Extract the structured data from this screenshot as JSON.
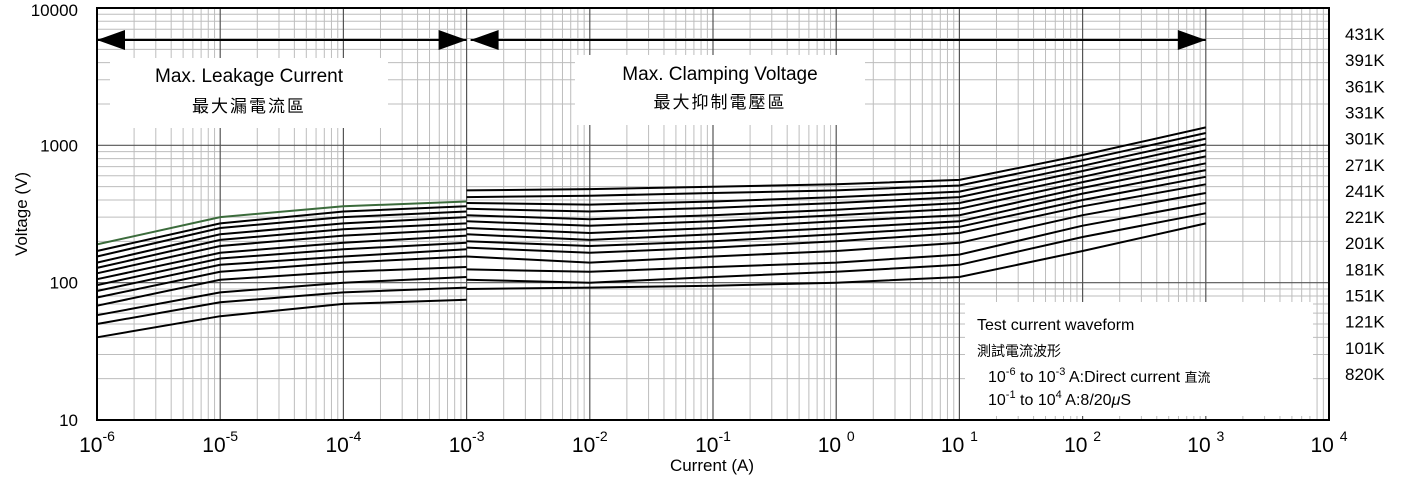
{
  "chart_data": {
    "type": "line",
    "title": "",
    "xlabel": "Current (A)",
    "ylabel": "Voltage (V)",
    "x_scale": "log",
    "y_scale": "log",
    "xlim": [
      1e-06,
      10000
    ],
    "ylim": [
      10,
      10000
    ],
    "grid": true,
    "x_ticks": [
      {
        "base": "10",
        "exp": "-6"
      },
      {
        "base": "10",
        "exp": "-5"
      },
      {
        "base": "10",
        "exp": "-4"
      },
      {
        "base": "10",
        "exp": "-3"
      },
      {
        "base": "10",
        "exp": "-2"
      },
      {
        "base": "10",
        "exp": "-1"
      },
      {
        "base": "10 ",
        "exp": "0"
      },
      {
        "base": "10 ",
        "exp": "1"
      },
      {
        "base": "10 ",
        "exp": "2"
      },
      {
        "base": "10 ",
        "exp": "3"
      },
      {
        "base": "10 ",
        "exp": "4"
      }
    ],
    "y_ticks": [
      "10",
      "100",
      "1000",
      "10000"
    ],
    "leakage_region": {
      "title_en": "Max. Leakage Current",
      "title_zh": "最大漏電流區",
      "x_range": [
        1e-06,
        0.001
      ]
    },
    "clamping_region": {
      "title_en": "Max. Clamping Voltage",
      "title_zh": "最大抑制電壓區",
      "x_range": [
        0.001,
        1000
      ]
    },
    "test_note": {
      "title_en": "Test current waveform",
      "title_zh": "測試電流波形",
      "line1_a": "10",
      "line1_e1": "-6",
      "line1_b": " to 10",
      "line1_e2": "-3",
      "line1_c": " A:Direct current ",
      "line1_zh": "直流",
      "line2_a": "10",
      "line2_e1": "-1",
      "line2_b": " to 10",
      "line2_e2": "4",
      "line2_c": "  A:8/20",
      "line2_mu": "μ",
      "line2_d": "S"
    },
    "leakage_x": [
      1e-06,
      1e-05,
      0.0001,
      0.001
    ],
    "clamping_x": [
      0.001,
      0.01,
      0.1,
      1,
      10,
      100,
      1000
    ],
    "series": [
      {
        "name": "431K",
        "leakage": [
          190,
          300,
          360,
          390
        ],
        "clamping": [
          470,
          480,
          500,
          520,
          560,
          850,
          1350
        ]
      },
      {
        "name": "391K",
        "leakage": [
          170,
          270,
          330,
          360
        ],
        "clamping": [
          420,
          430,
          450,
          470,
          510,
          780,
          1230
        ]
      },
      {
        "name": "361K",
        "leakage": [
          155,
          250,
          300,
          330
        ],
        "clamping": [
          380,
          370,
          390,
          420,
          460,
          710,
          1120
        ]
      },
      {
        "name": "331K",
        "leakage": [
          140,
          225,
          270,
          300
        ],
        "clamping": [
          345,
          330,
          350,
          380,
          420,
          650,
          1020
        ]
      },
      {
        "name": "301K",
        "leakage": [
          128,
          205,
          245,
          270
        ],
        "clamping": [
          310,
          290,
          310,
          340,
          380,
          590,
          920
        ]
      },
      {
        "name": "271K",
        "leakage": [
          117,
          185,
          220,
          245
        ],
        "clamping": [
          280,
          260,
          280,
          310,
          345,
          540,
          830
        ]
      },
      {
        "name": "241K",
        "leakage": [
          106,
          165,
          195,
          220
        ],
        "clamping": [
          250,
          230,
          250,
          280,
          310,
          490,
          740
        ]
      },
      {
        "name": "221K",
        "leakage": [
          96,
          150,
          175,
          195
        ],
        "clamping": [
          225,
          205,
          225,
          250,
          280,
          445,
          660
        ]
      },
      {
        "name": "201K",
        "leakage": [
          87,
          135,
          155,
          175
        ],
        "clamping": [
          200,
          185,
          200,
          225,
          255,
          400,
          590
        ]
      },
      {
        "name": "181K",
        "leakage": [
          78,
          120,
          140,
          155
        ],
        "clamping": [
          180,
          165,
          180,
          200,
          230,
          360,
          520
        ]
      },
      {
        "name": "151K",
        "leakage": [
          68,
          105,
          120,
          130
        ],
        "clamping": [
          155,
          140,
          155,
          170,
          195,
          310,
          450
        ]
      },
      {
        "name": "121K",
        "leakage": [
          58,
          85,
          100,
          110
        ],
        "clamping": [
          125,
          120,
          130,
          140,
          160,
          260,
          380
        ]
      },
      {
        "name": "101K",
        "leakage": [
          50,
          72,
          85,
          92
        ],
        "clamping": [
          105,
          100,
          110,
          120,
          135,
          215,
          320
        ]
      },
      {
        "name": "820K",
        "leakage": [
          40,
          57,
          70,
          75
        ],
        "clamping": [
          90,
          92,
          95,
          100,
          110,
          170,
          270
        ]
      }
    ]
  }
}
